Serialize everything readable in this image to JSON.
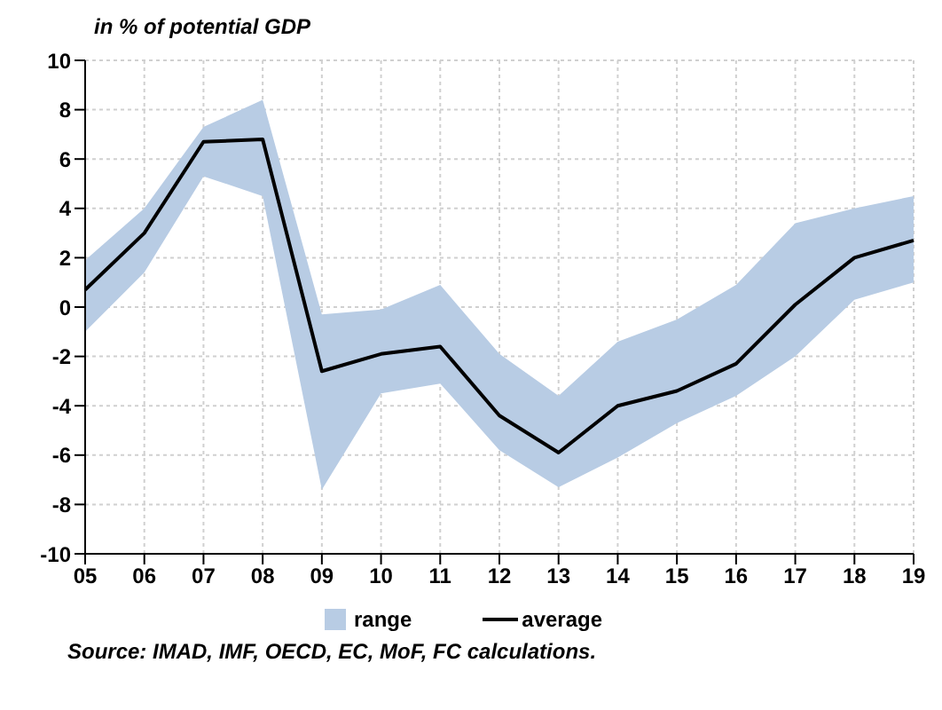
{
  "chart_data": {
    "type": "line",
    "ylabel": "in % of potential GDP",
    "categories": [
      "05",
      "06",
      "07",
      "08",
      "09",
      "10",
      "11",
      "12",
      "13",
      "14",
      "15",
      "16",
      "17",
      "18",
      "19"
    ],
    "series": [
      {
        "name": "average",
        "color": "#000000",
        "values": [
          0.7,
          3.0,
          6.7,
          6.8,
          -2.6,
          -1.9,
          -1.6,
          -4.4,
          -5.9,
          -4.0,
          -3.4,
          -2.3,
          0.1,
          2.0,
          2.7
        ],
        "lower": [
          -1.0,
          1.4,
          5.3,
          4.5,
          -7.4,
          -3.5,
          -3.1,
          -5.8,
          -7.3,
          -6.1,
          -4.7,
          -3.6,
          -2.0,
          0.3,
          1.0
        ],
        "upper": [
          1.9,
          4.0,
          7.3,
          8.4,
          -0.3,
          -0.1,
          0.9,
          -1.9,
          -3.6,
          -1.4,
          -0.5,
          0.9,
          3.4,
          4.0,
          4.5
        ]
      }
    ],
    "ylim": [
      -10,
      10
    ],
    "yticks": [
      -10,
      -8,
      -6,
      -4,
      -2,
      0,
      2,
      4,
      6,
      8,
      10
    ],
    "grid": true,
    "legend": "bottom",
    "marker": "none",
    "line_style": "solid",
    "annotations": [
      "range",
      "Source: IMAD, IMF, OECD, EC, MoF, FC calculations."
    ]
  }
}
